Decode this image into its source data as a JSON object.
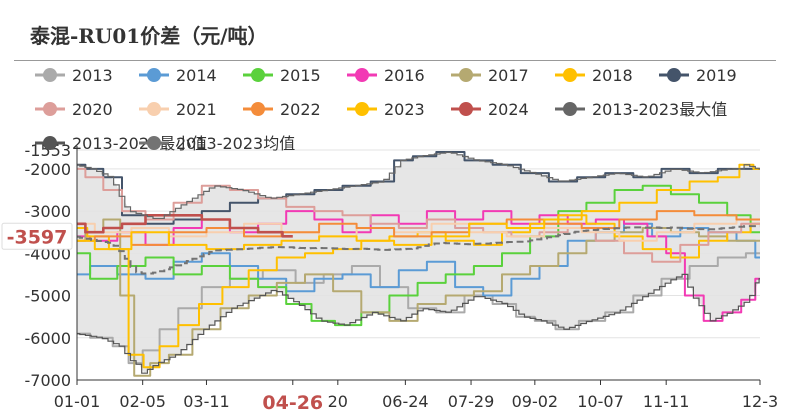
{
  "title": "泰混-RU01价差（元/吨）",
  "chart_data": {
    "type": "line",
    "title": "泰混-RU01价差（元/吨）",
    "xlabel": "",
    "ylabel": "",
    "ylim": [
      -7000,
      -1553
    ],
    "yticks": [
      {
        "value": -1553,
        "label": "-1553"
      },
      {
        "value": -2000,
        "label": "-2000"
      },
      {
        "value": -3000,
        "label": "-3000"
      },
      {
        "value": -4000,
        "label": "-4000"
      },
      {
        "value": -5000,
        "label": "-5000"
      },
      {
        "value": -6000,
        "label": "-6000"
      },
      {
        "value": -7000,
        "label": "-7000"
      }
    ],
    "x_axis": {
      "range": [
        "01-01",
        "12-31"
      ],
      "ticks": [
        {
          "day": 1,
          "label": "01-01"
        },
        {
          "day": 36,
          "label": "02-05"
        },
        {
          "day": 70,
          "label": "03-11"
        },
        {
          "day": 116,
          "label": "04-26"
        },
        {
          "day": 140,
          "label": "20"
        },
        {
          "day": 176,
          "label": "06-24"
        },
        {
          "day": 211,
          "label": "07-29"
        },
        {
          "day": 245,
          "label": "09-02"
        },
        {
          "day": 280,
          "label": "10-07"
        },
        {
          "day": 315,
          "label": "11-11"
        },
        {
          "day": 365,
          "label": "12-3"
        }
      ],
      "highlight": {
        "day": 116,
        "label": "04-26"
      }
    },
    "y_pointer": {
      "value": -3597,
      "label": "-3597"
    },
    "legend_position": "top",
    "grid": {
      "horizontal": true,
      "vertical": false
    },
    "band": {
      "name": "2013-2023最大值/最小值",
      "color": "#e6e6e6"
    },
    "series": [
      {
        "name": "2013",
        "color": "#aaaaaa",
        "x": [
          1,
          15,
          25,
          32,
          40,
          50,
          60,
          75,
          90,
          110,
          125,
          140,
          155,
          170,
          185,
          200,
          215,
          230,
          240,
          250,
          262,
          275,
          290,
          305,
          320,
          335,
          350,
          365
        ],
        "values": [
          -5900,
          -6000,
          -6200,
          -6600,
          -6300,
          -5800,
          -5300,
          -4800,
          -4600,
          -4400,
          -4700,
          -4500,
          -4300,
          -4800,
          -5300,
          -5400,
          -5000,
          -5200,
          -5500,
          -5600,
          -5800,
          -5600,
          -5400,
          -5000,
          -4600,
          -4300,
          -4100,
          -4000
        ]
      },
      {
        "name": "2014",
        "color": "#5b9bd5",
        "x": [
          1,
          15,
          30,
          45,
          60,
          75,
          90,
          105,
          120,
          135,
          150,
          165,
          180,
          195,
          210,
          225,
          240,
          255,
          270,
          285,
          300,
          315,
          330,
          345,
          360,
          365
        ],
        "values": [
          -4500,
          -4300,
          -4500,
          -4600,
          -4200,
          -4000,
          -4300,
          -4600,
          -4900,
          -4600,
          -4500,
          -4800,
          -4400,
          -4200,
          -4800,
          -5000,
          -4600,
          -4300,
          -3700,
          -3500,
          -3300,
          -3600,
          -3400,
          -3500,
          -3700,
          -4100
        ]
      },
      {
        "name": "2015",
        "color": "#5ad13c",
        "x": [
          1,
          15,
          30,
          45,
          60,
          75,
          90,
          105,
          120,
          132,
          145,
          160,
          175,
          190,
          205,
          220,
          235,
          250,
          265,
          280,
          295,
          310,
          325,
          340,
          355,
          365
        ],
        "values": [
          -4000,
          -4600,
          -4300,
          -4100,
          -4500,
          -4300,
          -4600,
          -4800,
          -5200,
          -5600,
          -5700,
          -5400,
          -5000,
          -4700,
          -4500,
          -4300,
          -4000,
          -3600,
          -3000,
          -2800,
          -2500,
          -2400,
          -2600,
          -2800,
          -3100,
          -3500
        ]
      },
      {
        "name": "2016",
        "color": "#f23ab4",
        "x": [
          1,
          15,
          30,
          45,
          60,
          75,
          90,
          105,
          120,
          135,
          150,
          165,
          180,
          195,
          210,
          225,
          240,
          255,
          270,
          285,
          300,
          310,
          320,
          330,
          340,
          350,
          360,
          365
        ],
        "values": [
          -3600,
          -3700,
          -3500,
          -3800,
          -3400,
          -3200,
          -3500,
          -3300,
          -3000,
          -3200,
          -3500,
          -3100,
          -3300,
          -3000,
          -3200,
          -3000,
          -3300,
          -3100,
          -3300,
          -3200,
          -3300,
          -3600,
          -4000,
          -5000,
          -5600,
          -5400,
          -5100,
          -4600
        ]
      },
      {
        "name": "2017",
        "color": "#b5a971",
        "x": [
          1,
          10,
          20,
          28,
          35,
          45,
          55,
          70,
          85,
          100,
          115,
          130,
          145,
          160,
          175,
          190,
          205,
          220,
          235,
          250,
          265,
          280,
          295,
          310,
          325,
          340,
          355,
          365
        ],
        "values": [
          -3700,
          -3500,
          -3200,
          -5000,
          -6900,
          -6600,
          -6400,
          -5800,
          -5300,
          -5000,
          -4700,
          -4500,
          -4900,
          -5400,
          -5600,
          -5200,
          -5000,
          -4900,
          -4500,
          -4300,
          -4000,
          -3700,
          -3500,
          -3400,
          -3500,
          -3600,
          -3700,
          -3700
        ]
      },
      {
        "name": "2018",
        "color": "#ffc000",
        "x": [
          1,
          12,
          24,
          33,
          40,
          50,
          60,
          72,
          85,
          100,
          115,
          130,
          145,
          160,
          175,
          190,
          205,
          220,
          235,
          250,
          265,
          280,
          295,
          310,
          325,
          340,
          355,
          365
        ],
        "values": [
          -3400,
          -3600,
          -3900,
          -6400,
          -6700,
          -6200,
          -5700,
          -5200,
          -4800,
          -4400,
          -4100,
          -4000,
          -3900,
          -3700,
          -3600,
          -3500,
          -3700,
          -3800,
          -3500,
          -3300,
          -3100,
          -3300,
          -3600,
          -3900,
          -4100,
          -3700,
          -3500,
          -3300
        ]
      },
      {
        "name": "2019",
        "color": "#44546a",
        "x": [
          1,
          10,
          20,
          30,
          45,
          60,
          75,
          90,
          105,
          120,
          135,
          150,
          165,
          175,
          185,
          200,
          215,
          230,
          245,
          260,
          275,
          290,
          305,
          320,
          335,
          350,
          365
        ],
        "values": [
          -1900,
          -2000,
          -2200,
          -3100,
          -3300,
          -3200,
          -3000,
          -2800,
          -2700,
          -2600,
          -2500,
          -2400,
          -2300,
          -1800,
          -1700,
          -1600,
          -1800,
          -1900,
          -2100,
          -2300,
          -2200,
          -2100,
          -2200,
          -2000,
          -2100,
          -2000,
          -2000
        ]
      },
      {
        "name": "2020",
        "color": "#dd9e9a",
        "x": [
          1,
          10,
          20,
          30,
          45,
          60,
          75,
          90,
          105,
          120,
          135,
          150,
          165,
          180,
          195,
          210,
          225,
          240,
          255,
          270,
          285,
          300,
          315,
          330,
          345,
          365
        ],
        "values": [
          -2000,
          -2200,
          -2500,
          -3000,
          -3200,
          -2800,
          -2400,
          -2500,
          -2700,
          -2900,
          -3000,
          -3100,
          -3300,
          -3400,
          -3200,
          -3400,
          -3500,
          -3600,
          -3500,
          -3400,
          -3700,
          -4000,
          -4200,
          -3800,
          -3500,
          -3300
        ]
      },
      {
        "name": "2021",
        "color": "#f8cfae",
        "x": [
          1,
          20,
          40,
          60,
          80,
          100,
          120,
          140,
          160,
          180,
          200,
          220,
          240,
          260,
          280,
          300,
          320,
          340,
          365
        ],
        "values": [
          -3300,
          -3500,
          -3400,
          -3600,
          -3500,
          -3300,
          -3500,
          -3600,
          -3400,
          -3500,
          -3300,
          -3500,
          -3600,
          -3400,
          -3500,
          -3700,
          -3500,
          -3300,
          -3200
        ]
      },
      {
        "name": "2022",
        "color": "#f48c3a",
        "x": [
          1,
          20,
          40,
          60,
          80,
          100,
          120,
          140,
          160,
          180,
          200,
          220,
          240,
          260,
          280,
          300,
          320,
          340,
          365
        ],
        "values": [
          -3700,
          -3600,
          -3800,
          -3500,
          -3400,
          -3600,
          -3500,
          -3300,
          -3400,
          -3600,
          -3500,
          -3300,
          -3200,
          -3300,
          -3400,
          -3200,
          -3000,
          -3100,
          -3200
        ]
      },
      {
        "name": "2023",
        "color": "#ffc000",
        "x": [
          1,
          20,
          40,
          60,
          80,
          100,
          120,
          140,
          160,
          180,
          200,
          220,
          240,
          260,
          280,
          300,
          320,
          335,
          350,
          358,
          365
        ],
        "values": [
          -3700,
          -3900,
          -3500,
          -3800,
          -3900,
          -3800,
          -3700,
          -3600,
          -3700,
          -3800,
          -3600,
          -3300,
          -3400,
          -3200,
          -3000,
          -2800,
          -2500,
          -2300,
          -2200,
          -1900,
          -2000
        ]
      },
      {
        "name": "2024",
        "color": "#c0504d",
        "x": [
          1,
          10,
          20,
          30,
          45,
          60,
          75,
          90,
          105,
          116
        ],
        "values": [
          -3300,
          -3500,
          -3400,
          -3300,
          -3100,
          -3100,
          -3200,
          -3400,
          -3500,
          -3597
        ]
      },
      {
        "name": "2013-2023最大值",
        "color": "#666666",
        "role": "max"
      },
      {
        "name": "2013-2023最小值",
        "color": "#555555",
        "role": "min"
      },
      {
        "name": "2013-2023均值",
        "color": "#737373",
        "role": "mean"
      }
    ]
  }
}
